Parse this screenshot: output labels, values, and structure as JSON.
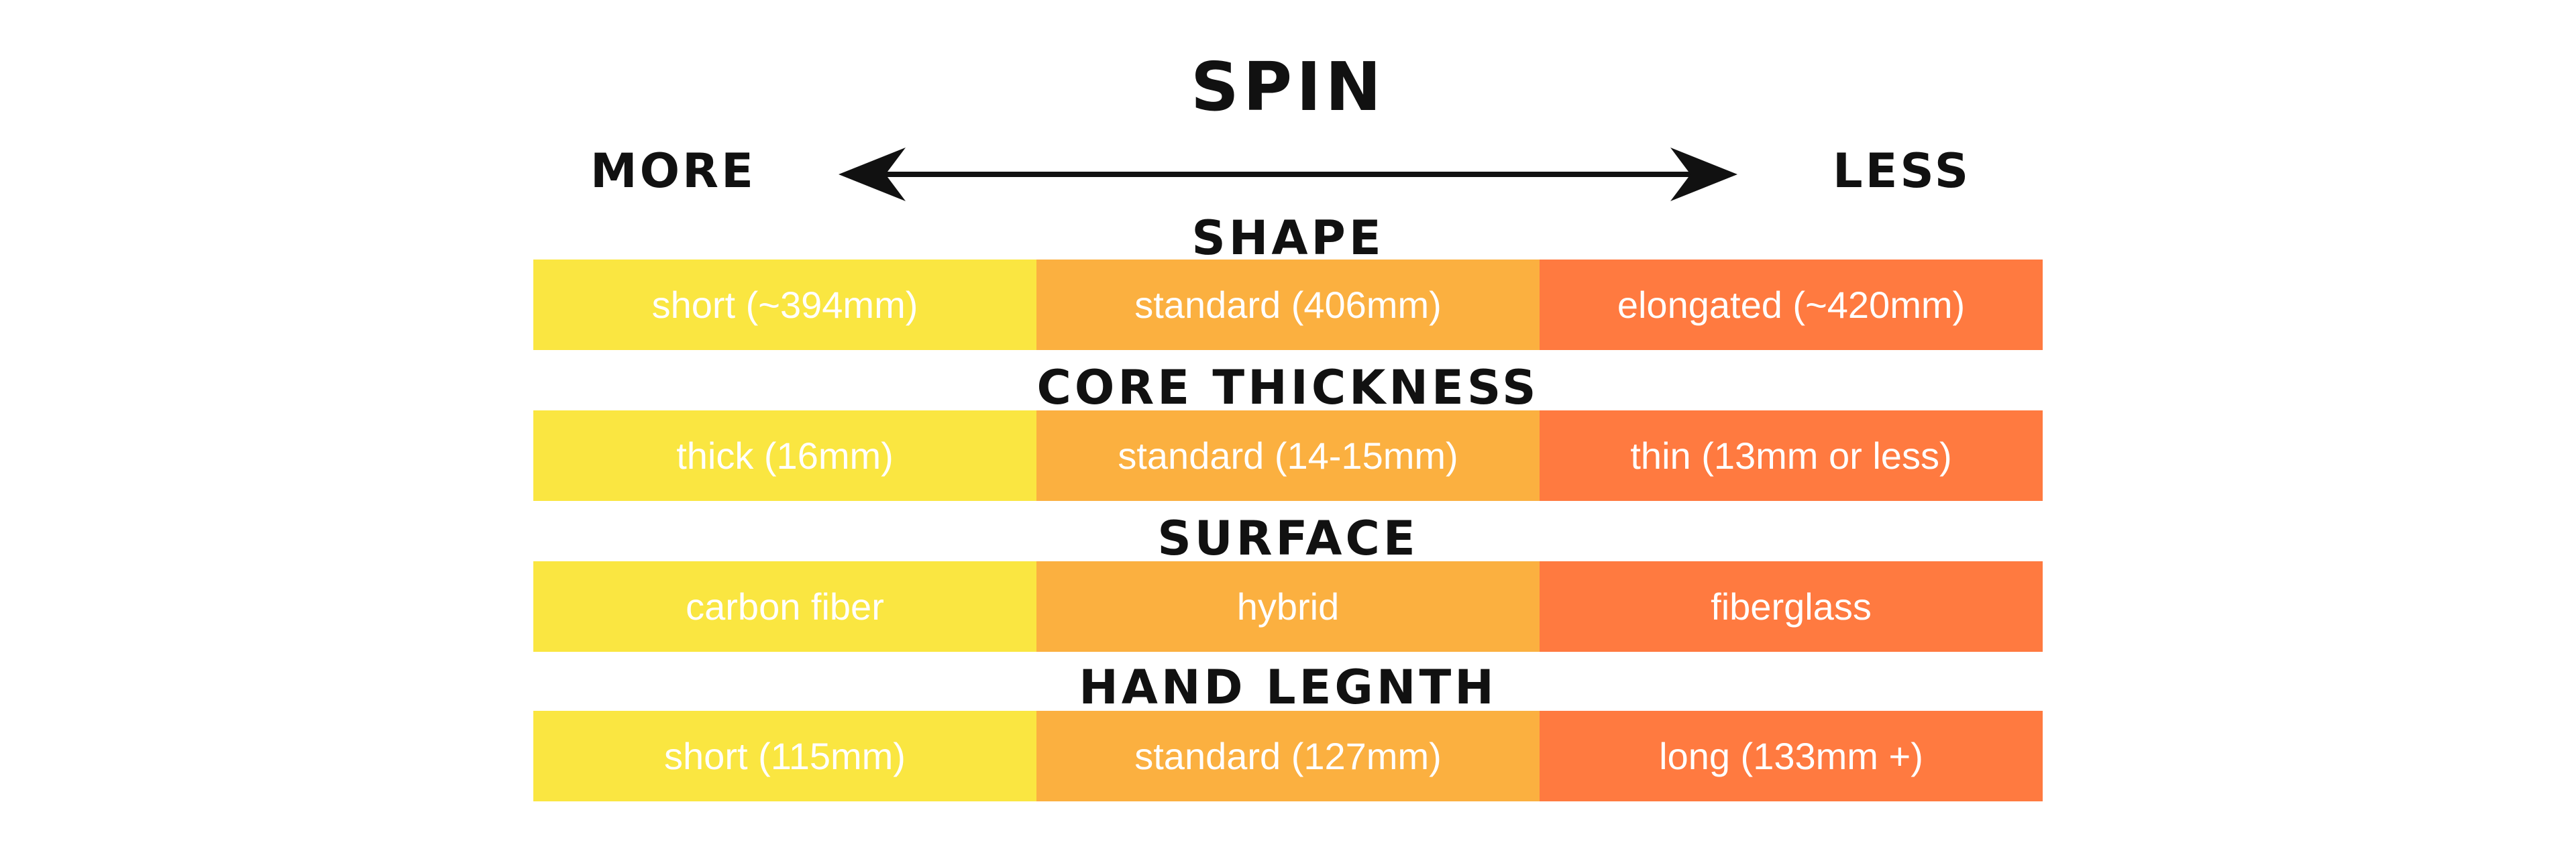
{
  "title": "SPIN",
  "scale": {
    "left_label": "MORE",
    "right_label": "LESS",
    "arrow_icon": "double-headed-arrow-icon"
  },
  "colors": {
    "more": "#FAE641",
    "mid": "#FBB040",
    "less": "#FF7A40",
    "text": "#111111",
    "cell_text": "#FFFFFF"
  },
  "sections": [
    {
      "title": "SHAPE",
      "cells": [
        "short (~394mm)",
        "standard (406mm)",
        "elongated (~420mm)"
      ]
    },
    {
      "title": "CORE THICKNESS",
      "cells": [
        "thick (16mm)",
        "standard (14-15mm)",
        "thin (13mm or less)"
      ]
    },
    {
      "title": "SURFACE",
      "cells": [
        "carbon fiber",
        "hybrid",
        "fiberglass"
      ]
    },
    {
      "title": "HAND LEGNTH",
      "cells": [
        "short (115mm)",
        "standard (127mm)",
        "long (133mm +)"
      ]
    }
  ]
}
